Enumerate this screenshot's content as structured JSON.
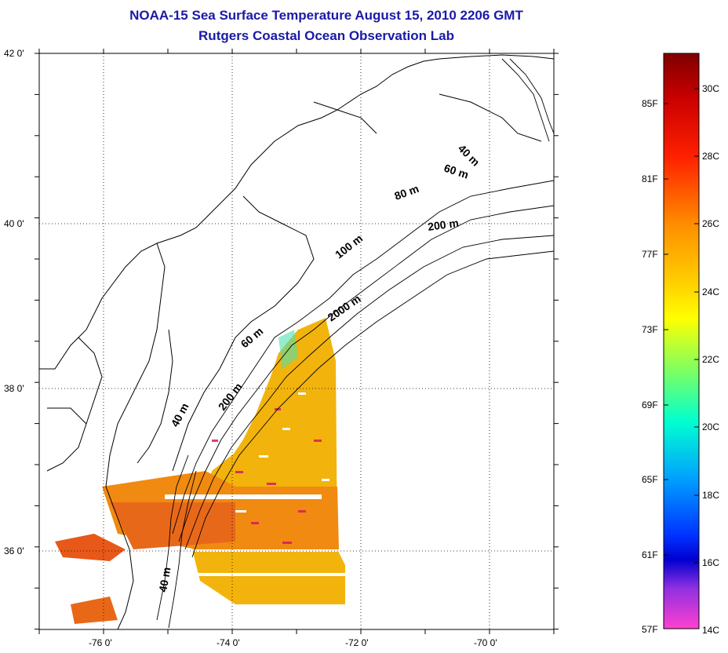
{
  "title": {
    "line1": "NOAA-15 Sea Surface Temperature August 15, 2010 2206 GMT",
    "line2": "Rutgers Coastal Ocean Observation Lab"
  },
  "map": {
    "lat_labels": [
      "42 0'",
      "40 0'",
      "38 0'",
      "36 0'"
    ],
    "lon_labels": [
      "-76 0'",
      "-74 0'",
      "-72 0'",
      "-70 0'"
    ],
    "contour_labels": [
      "40 m",
      "60 m",
      "80 m",
      "200 m",
      "100 m",
      "2000 m",
      "60 m",
      "200 m",
      "40 m",
      "40 m"
    ],
    "grid": "dotted"
  },
  "colorbar": {
    "fahrenheit_labels": [
      "85F",
      "81F",
      "77F",
      "73F",
      "69F",
      "65F",
      "61F",
      "57F"
    ],
    "celsius_labels": [
      "30C",
      "28C",
      "26C",
      "24C",
      "22C",
      "20C",
      "18C",
      "16C",
      "14C"
    ],
    "colors": [
      "#8b0000",
      "#ff0000",
      "#ff8000",
      "#ffd000",
      "#ffff00",
      "#80ff40",
      "#00ffd0",
      "#00c0ff",
      "#0040ff",
      "#0000c8",
      "#a020f0",
      "#ff40d0"
    ]
  }
}
